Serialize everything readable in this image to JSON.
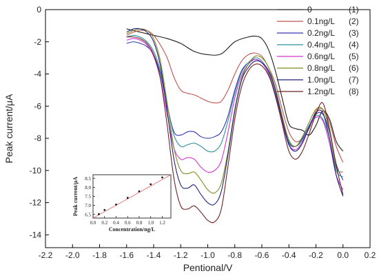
{
  "chart_data": [
    {
      "type": "line",
      "xlabel": "Pentional/V",
      "ylabel": "Peak current/μA",
      "xlim": [
        -2.2,
        0.2
      ],
      "ylim": [
        -14.8,
        0
      ],
      "xticks": [
        "-2.2",
        "-2.0",
        "-1.8",
        "-1.6",
        "-1.4",
        "-1.2",
        "-1.0",
        "-0.8",
        "-0.6",
        "-0.4",
        "-0.2",
        "0.0",
        "0.2"
      ],
      "yticks": [
        "0",
        "-2",
        "-4",
        "-6",
        "-8",
        "-10",
        "-12",
        "-14"
      ],
      "legend_position": "top-right",
      "series": [
        {
          "name": "0",
          "tag": "(1)",
          "color": "#1a1a1a",
          "x": [
            -1.6,
            -1.5,
            -1.4,
            -1.3,
            -1.2,
            -1.1,
            -1.0,
            -0.9,
            -0.8,
            -0.7,
            -0.65,
            -0.6,
            -0.55,
            -0.5,
            -0.45,
            -0.4,
            -0.35,
            -0.3,
            -0.25,
            -0.2,
            -0.15,
            -0.1,
            -0.05,
            0.0
          ],
          "y": [
            -1.2,
            -1.4,
            -1.6,
            -1.8,
            -2.1,
            -2.6,
            -2.8,
            -2.75,
            -2.0,
            -1.7,
            -1.65,
            -1.8,
            -2.5,
            -3.8,
            -5.5,
            -7.1,
            -7.4,
            -7.5,
            -7.8,
            -7.2,
            -6.3,
            -6.8,
            -8.2,
            -8.8
          ]
        },
        {
          "name": "0.1ng/L",
          "tag": "(2)",
          "color": "#c0504d",
          "x": [
            -1.6,
            -1.55,
            -1.5,
            -1.45,
            -1.4,
            -1.35,
            -1.3,
            -1.25,
            -1.2,
            -1.15,
            -1.1,
            -1.05,
            -1.0,
            -0.95,
            -0.9,
            -0.85,
            -0.8,
            -0.75,
            -0.7,
            -0.65,
            -0.6,
            -0.55,
            -0.5,
            -0.45,
            -0.4,
            -0.35,
            -0.3,
            -0.25,
            -0.2,
            -0.15,
            -0.1,
            -0.05,
            0.0
          ],
          "y": [
            -1.6,
            -1.4,
            -1.3,
            -1.3,
            -1.6,
            -2.2,
            -3.0,
            -4.2,
            -5.0,
            -5.2,
            -5.3,
            -5.5,
            -5.7,
            -5.8,
            -5.7,
            -5.0,
            -4.0,
            -3.2,
            -2.8,
            -2.7,
            -2.9,
            -3.6,
            -4.6,
            -6.2,
            -7.6,
            -8.2,
            -8.0,
            -7.4,
            -6.3,
            -6.2,
            -7.0,
            -8.5,
            -9.5
          ]
        },
        {
          "name": "0.2ng/L",
          "tag": "(3)",
          "color": "#3535b5",
          "x": [
            -1.6,
            -1.55,
            -1.5,
            -1.45,
            -1.4,
            -1.35,
            -1.3,
            -1.25,
            -1.2,
            -1.15,
            -1.1,
            -1.05,
            -1.0,
            -0.95,
            -0.9,
            -0.85,
            -0.8,
            -0.75,
            -0.7,
            -0.65,
            -0.6,
            -0.55,
            -0.5,
            -0.45,
            -0.4,
            -0.35,
            -0.3,
            -0.25,
            -0.2,
            -0.15,
            -0.1,
            -0.05,
            0.0
          ],
          "y": [
            -2.1,
            -2.0,
            -2.1,
            -2.3,
            -2.8,
            -4.0,
            -6.0,
            -7.6,
            -7.8,
            -7.6,
            -7.6,
            -7.9,
            -8.0,
            -7.9,
            -7.6,
            -6.6,
            -5.0,
            -3.8,
            -3.3,
            -3.1,
            -3.3,
            -4.0,
            -5.4,
            -7.0,
            -8.3,
            -8.5,
            -8.0,
            -7.2,
            -6.5,
            -6.5,
            -7.6,
            -9.6,
            -10.6
          ]
        },
        {
          "name": "0.4ng/L",
          "tag": "(4)",
          "color": "#2c8fa0",
          "x": [
            -1.6,
            -1.55,
            -1.5,
            -1.45,
            -1.4,
            -1.35,
            -1.3,
            -1.25,
            -1.2,
            -1.15,
            -1.1,
            -1.05,
            -1.0,
            -0.95,
            -0.9,
            -0.85,
            -0.8,
            -0.75,
            -0.7,
            -0.65,
            -0.6,
            -0.55,
            -0.5,
            -0.45,
            -0.4,
            -0.35,
            -0.3,
            -0.25,
            -0.2,
            -0.15,
            -0.1,
            -0.05,
            0.0
          ],
          "y": [
            -1.7,
            -1.6,
            -1.7,
            -2.0,
            -2.6,
            -3.8,
            -5.9,
            -7.8,
            -8.5,
            -8.4,
            -8.3,
            -8.5,
            -8.8,
            -8.8,
            -8.3,
            -6.9,
            -5.2,
            -3.9,
            -3.3,
            -3.0,
            -3.2,
            -3.9,
            -5.2,
            -6.8,
            -8.2,
            -8.5,
            -8.1,
            -7.2,
            -6.6,
            -6.8,
            -8.0,
            -10.0,
            -10.4
          ]
        },
        {
          "name": "0.6ng/L",
          "tag": "(5)",
          "color": "#d233d2",
          "x": [
            -1.6,
            -1.55,
            -1.5,
            -1.45,
            -1.4,
            -1.35,
            -1.3,
            -1.25,
            -1.2,
            -1.15,
            -1.1,
            -1.05,
            -1.0,
            -0.95,
            -0.9,
            -0.85,
            -0.8,
            -0.75,
            -0.7,
            -0.65,
            -0.6,
            -0.55,
            -0.5,
            -0.45,
            -0.4,
            -0.35,
            -0.3,
            -0.25,
            -0.2,
            -0.15,
            -0.1,
            -0.05,
            0.0
          ],
          "y": [
            -1.9,
            -1.8,
            -1.9,
            -2.2,
            -2.9,
            -4.3,
            -6.5,
            -8.6,
            -9.3,
            -9.2,
            -9.3,
            -9.8,
            -10.1,
            -10.0,
            -9.4,
            -7.6,
            -5.5,
            -4.1,
            -3.4,
            -3.1,
            -3.3,
            -4.0,
            -5.3,
            -7.0,
            -8.4,
            -8.7,
            -8.2,
            -7.3,
            -6.7,
            -6.9,
            -8.3,
            -10.3,
            -11.2
          ]
        },
        {
          "name": "0.8ng/L",
          "tag": "(6)",
          "color": "#7e8a1e",
          "x": [
            -1.6,
            -1.55,
            -1.5,
            -1.45,
            -1.4,
            -1.35,
            -1.3,
            -1.25,
            -1.2,
            -1.15,
            -1.1,
            -1.05,
            -1.0,
            -0.95,
            -0.9,
            -0.85,
            -0.8,
            -0.75,
            -0.7,
            -0.65,
            -0.6,
            -0.55,
            -0.5,
            -0.45,
            -0.4,
            -0.35,
            -0.3,
            -0.25,
            -0.2,
            -0.15,
            -0.1,
            -0.05,
            0.0
          ],
          "y": [
            -1.5,
            -1.3,
            -1.2,
            -1.3,
            -1.8,
            -3.2,
            -5.8,
            -8.6,
            -10.0,
            -10.2,
            -10.1,
            -10.6,
            -11.2,
            -11.4,
            -10.8,
            -8.8,
            -6.2,
            -4.3,
            -3.4,
            -2.9,
            -3.0,
            -3.6,
            -4.9,
            -6.6,
            -8.1,
            -8.5,
            -7.9,
            -7.0,
            -6.2,
            -6.2,
            -7.5,
            -9.8,
            -10.1
          ]
        },
        {
          "name": "1.0ng/L",
          "tag": "(7)",
          "color": "#1f1f7a",
          "x": [
            -1.6,
            -1.55,
            -1.5,
            -1.45,
            -1.4,
            -1.35,
            -1.3,
            -1.25,
            -1.2,
            -1.15,
            -1.1,
            -1.05,
            -1.0,
            -0.95,
            -0.9,
            -0.85,
            -0.8,
            -0.75,
            -0.7,
            -0.65,
            -0.6,
            -0.55,
            -0.5,
            -0.45,
            -0.4,
            -0.35,
            -0.3,
            -0.25,
            -0.2,
            -0.15,
            -0.1,
            -0.05,
            0.0
          ],
          "y": [
            -1.4,
            -1.2,
            -1.2,
            -1.4,
            -2.0,
            -3.5,
            -6.3,
            -9.3,
            -10.9,
            -11.1,
            -10.9,
            -11.5,
            -12.0,
            -12.1,
            -11.3,
            -9.0,
            -6.3,
            -4.4,
            -3.6,
            -3.2,
            -3.3,
            -3.8,
            -5.0,
            -6.8,
            -8.4,
            -8.8,
            -8.3,
            -7.3,
            -6.4,
            -6.4,
            -8.0,
            -10.3,
            -11.6
          ]
        },
        {
          "name": "1.2ng/L",
          "tag": "(8)",
          "color": "#6b2020",
          "x": [
            -1.6,
            -1.55,
            -1.5,
            -1.45,
            -1.4,
            -1.35,
            -1.3,
            -1.25,
            -1.2,
            -1.15,
            -1.1,
            -1.05,
            -1.0,
            -0.95,
            -0.9,
            -0.85,
            -0.8,
            -0.75,
            -0.7,
            -0.65,
            -0.6,
            -0.55,
            -0.5,
            -0.45,
            -0.4,
            -0.35,
            -0.3,
            -0.25,
            -0.2,
            -0.15,
            -0.1,
            -0.05,
            0.0
          ],
          "y": [
            -1.7,
            -1.7,
            -1.8,
            -2.1,
            -2.8,
            -4.3,
            -7.2,
            -10.5,
            -12.2,
            -12.4,
            -12.2,
            -12.6,
            -13.1,
            -13.2,
            -12.4,
            -9.7,
            -6.8,
            -4.8,
            -3.8,
            -3.4,
            -3.5,
            -4.1,
            -5.3,
            -7.1,
            -8.8,
            -9.3,
            -8.8,
            -7.7,
            -6.5,
            -5.8,
            -7.4,
            -9.7,
            -11.5
          ]
        }
      ]
    },
    {
      "type": "scatter",
      "xlabel": "Concentration/ng/L",
      "ylabel": "Peak current/μA",
      "xlim": [
        0,
        1.35
      ],
      "ylim": [
        6.3,
        8.7
      ],
      "xticks": [
        "0.0",
        "0.2",
        "0.4",
        "0.6",
        "0.8",
        "1.0",
        "1.2"
      ],
      "yticks": [
        "6.5",
        "7.0",
        "7.5",
        "8.0",
        "8.5"
      ],
      "x": [
        0.1,
        0.2,
        0.4,
        0.6,
        0.8,
        1.0,
        1.2
      ],
      "y": [
        6.52,
        6.75,
        7.05,
        7.42,
        7.78,
        8.17,
        8.55
      ],
      "fit_line": {
        "x": [
          0.0,
          1.35
        ],
        "y": [
          6.3,
          8.95
        ],
        "color": "#e26a6a"
      }
    }
  ]
}
